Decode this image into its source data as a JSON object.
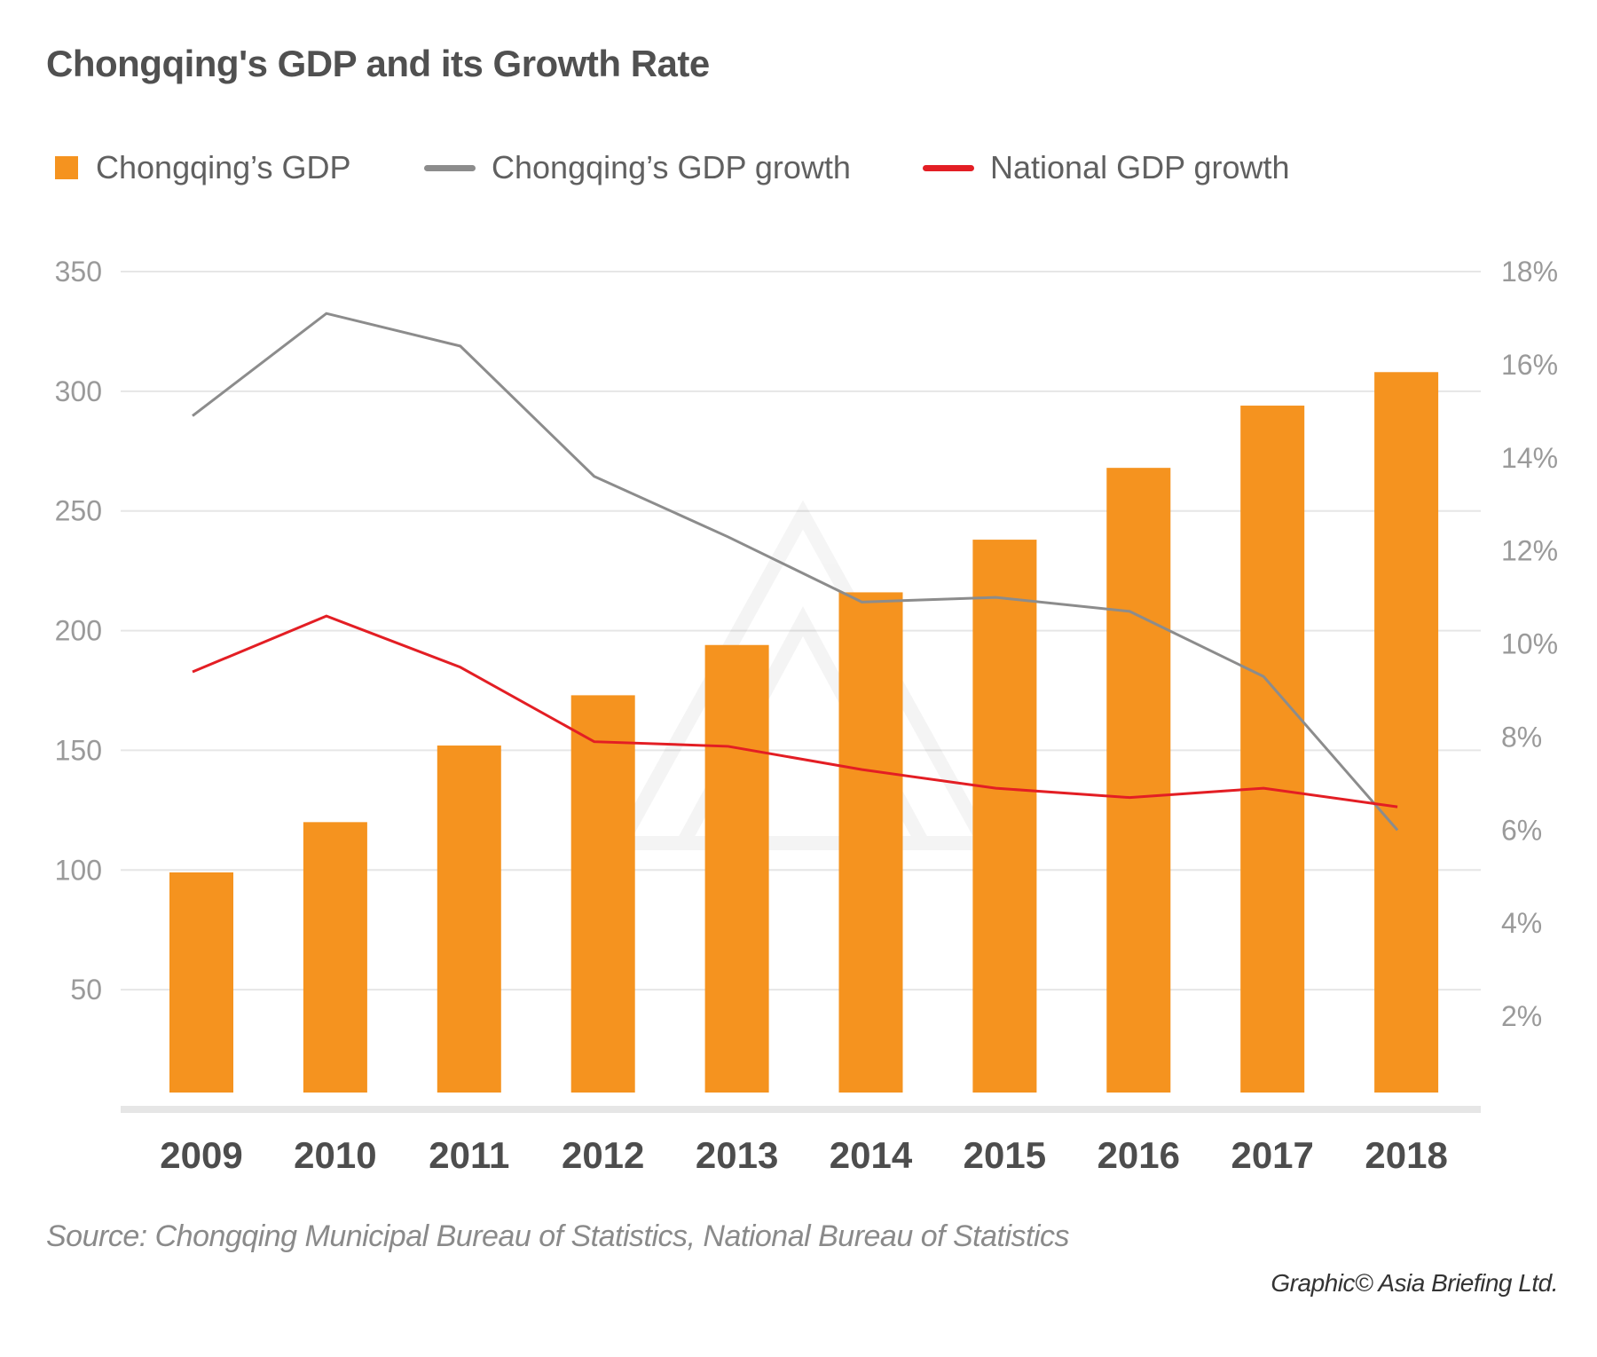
{
  "chart_data": {
    "type": "bar+line",
    "title": "Chongqing's GDP and its Growth Rate",
    "categories": [
      "2009",
      "2010",
      "2011",
      "2012",
      "2013",
      "2014",
      "2015",
      "2016",
      "2017",
      "2018"
    ],
    "series": [
      {
        "name": "Chongqing’s GDP",
        "type": "bar",
        "axis": "left",
        "color": "#f5931f",
        "values": [
          99,
          120,
          152,
          173,
          194,
          216,
          238,
          268,
          294,
          308
        ]
      },
      {
        "name": "Chongqing’s GDP growth",
        "type": "line",
        "axis": "right",
        "color": "#8c8c8c",
        "values": [
          14.9,
          17.1,
          16.4,
          13.6,
          12.3,
          10.9,
          11.0,
          10.7,
          9.3,
          6.0
        ]
      },
      {
        "name": "National GDP growth",
        "type": "line",
        "axis": "right",
        "color": "#e31e24",
        "values": [
          9.4,
          10.6,
          9.5,
          7.9,
          7.8,
          7.3,
          6.9,
          6.7,
          6.9,
          6.5
        ]
      }
    ],
    "y_left": {
      "ticks": [
        "50",
        "100",
        "150",
        "200",
        "250",
        "300",
        "350"
      ],
      "ylim": [
        0,
        350
      ]
    },
    "y_right": {
      "ticks": [
        "2%",
        "4%",
        "6%",
        "8%",
        "10%",
        "12%",
        "14%",
        "16%",
        "18%"
      ],
      "ylim": [
        0,
        18
      ]
    },
    "grid": true,
    "legend": "top-left"
  },
  "source": "Source: Chongqing Municipal Bureau of Statistics, National Bureau of Statistics",
  "credit": "Graphic© Asia Briefing Ltd."
}
